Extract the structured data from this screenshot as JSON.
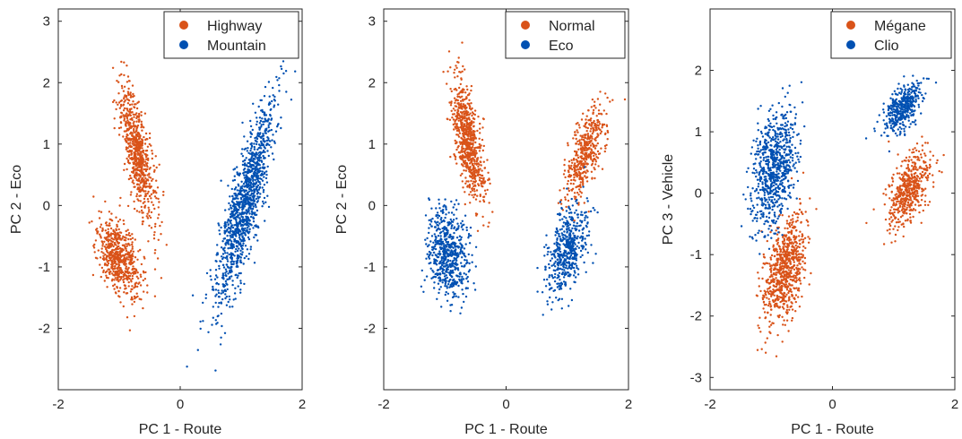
{
  "chart_data": [
    {
      "type": "scatter",
      "xlabel": "PC 1 - Route",
      "ylabel": "PC 2 - Eco",
      "xlim": [
        -2,
        2
      ],
      "ylim": [
        -3,
        3.2
      ],
      "xticks": [
        "-2",
        "0",
        "2"
      ],
      "yticks": [
        "-2",
        "-1",
        "0",
        "1",
        "2",
        "3"
      ],
      "legend_position": "top-right",
      "series": [
        {
          "name": "Highway",
          "color": "#D95319",
          "clusters": [
            {
              "n": 600,
              "x0": -1.0,
              "y0": -0.85,
              "lx": [
                -0.3,
                1.0
              ],
              "sd": [
                0.34,
                0.15
              ]
            },
            {
              "n": 700,
              "x0": -0.7,
              "y0": 0.85,
              "lx": [
                -0.2,
                1.0
              ],
              "sd": [
                0.55,
                0.1
              ]
            }
          ]
        },
        {
          "name": "Mountain",
          "color": "#0050B2",
          "clusters": [
            {
              "n": 1200,
              "x0": 1.05,
              "y0": 0.0,
              "lx": [
                0.25,
                1.0
              ],
              "sd": [
                0.82,
                0.13
              ]
            }
          ]
        }
      ]
    },
    {
      "type": "scatter",
      "xlabel": "PC 1 - Route",
      "ylabel": "PC 2 - Eco",
      "xlim": [
        -2,
        2
      ],
      "ylim": [
        -3,
        3.2
      ],
      "xticks": [
        "-2",
        "0",
        "2"
      ],
      "yticks": [
        "-2",
        "-1",
        "0",
        "1",
        "2",
        "3"
      ],
      "legend_position": "top-right",
      "series": [
        {
          "name": "Normal",
          "color": "#D95319",
          "clusters": [
            {
              "n": 700,
              "x0": -0.62,
              "y0": 1.05,
              "lx": [
                -0.17,
                1.0
              ],
              "sd": [
                0.5,
                0.1
              ]
            },
            {
              "n": 450,
              "x0": 1.3,
              "y0": 0.85,
              "lx": [
                0.3,
                1.0
              ],
              "sd": [
                0.4,
                0.12
              ]
            }
          ]
        },
        {
          "name": "Eco",
          "color": "#0050B2",
          "clusters": [
            {
              "n": 600,
              "x0": -0.95,
              "y0": -0.8,
              "lx": [
                -0.1,
                1.0
              ],
              "sd": [
                0.38,
                0.16
              ]
            },
            {
              "n": 500,
              "x0": 1.0,
              "y0": -0.7,
              "lx": [
                0.25,
                1.0
              ],
              "sd": [
                0.38,
                0.14
              ]
            }
          ]
        }
      ]
    },
    {
      "type": "scatter",
      "xlabel": "PC 1 - Route",
      "ylabel": "PC 3 - Vehicle",
      "xlim": [
        -2,
        2
      ],
      "ylim": [
        -3.2,
        3
      ],
      "xticks": [
        "-2",
        "0",
        "2"
      ],
      "yticks": [
        "-3",
        "-2",
        "-1",
        "0",
        "1",
        "2"
      ],
      "legend_position": "top-right",
      "series": [
        {
          "name": "Mégane",
          "color": "#D95319",
          "clusters": [
            {
              "n": 750,
              "x0": -0.78,
              "y0": -1.25,
              "lx": [
                0.2,
                1.0
              ],
              "sd": [
                0.45,
                0.15
              ]
            },
            {
              "n": 500,
              "x0": 1.25,
              "y0": 0.05,
              "lx": [
                0.4,
                1.0
              ],
              "sd": [
                0.32,
                0.14
              ]
            }
          ]
        },
        {
          "name": "Clio",
          "color": "#0050B2",
          "clusters": [
            {
              "n": 750,
              "x0": -0.95,
              "y0": 0.4,
              "lx": [
                0.15,
                1.0
              ],
              "sd": [
                0.48,
                0.17
              ]
            },
            {
              "n": 400,
              "x0": 1.15,
              "y0": 1.4,
              "lx": [
                0.6,
                1.0
              ],
              "sd": [
                0.22,
                0.12
              ]
            }
          ]
        }
      ]
    }
  ]
}
